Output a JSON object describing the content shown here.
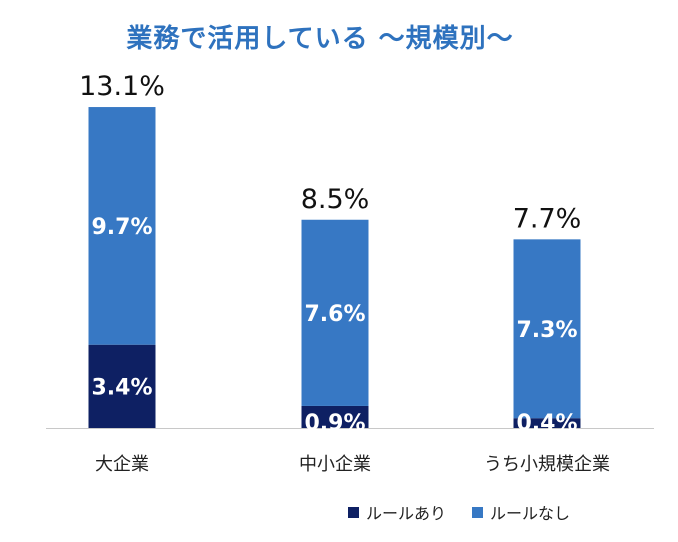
{
  "chart_data": {
    "type": "bar",
    "stacked": true,
    "title": "業務で活用している ～規模別～",
    "categories": [
      "大企業",
      "中小企業",
      "うち小規模企業"
    ],
    "series": [
      {
        "name": "ルールあり",
        "values": [
          3.4,
          0.9,
          0.4
        ],
        "labels": [
          "3.4%",
          "0.9%",
          "0.4%"
        ],
        "color": "#0e2063"
      },
      {
        "name": "ルールなし",
        "values": [
          9.7,
          7.6,
          7.3
        ],
        "labels": [
          "9.7%",
          "7.6%",
          "7.3%"
        ],
        "color": "#3778c4"
      }
    ],
    "totals": [
      13.1,
      8.5,
      7.7
    ],
    "total_labels": [
      "13.1%",
      "8.5%",
      "7.7%"
    ],
    "ylim": [
      0,
      14
    ],
    "grid": false,
    "legend_position": "bottom-right"
  }
}
